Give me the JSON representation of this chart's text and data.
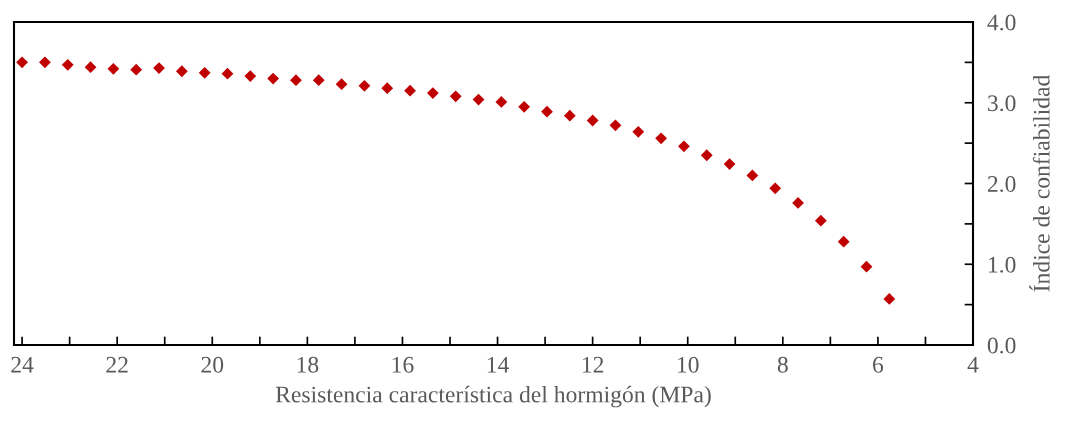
{
  "chart_data": {
    "type": "scatter",
    "xlabel": "Resistencia característica del hormigón (MPa)",
    "ylabel": "Índice de confiabilidad",
    "x": [
      24.0,
      23.52,
      23.04,
      22.56,
      22.08,
      21.6,
      21.12,
      20.64,
      20.16,
      19.68,
      19.2,
      18.72,
      18.24,
      17.76,
      17.28,
      16.8,
      16.32,
      15.84,
      15.36,
      14.88,
      14.4,
      13.92,
      13.44,
      12.96,
      12.48,
      12.0,
      11.52,
      11.04,
      10.56,
      10.08,
      9.6,
      9.12,
      8.64,
      8.16,
      7.68,
      7.2,
      6.72,
      6.24,
      5.76
    ],
    "series": [
      {
        "color": "#c00000",
        "values": [
          3.5,
          3.5,
          3.47,
          3.44,
          3.42,
          3.41,
          3.43,
          3.39,
          3.37,
          3.36,
          3.33,
          3.3,
          3.28,
          3.28,
          3.23,
          3.21,
          3.18,
          3.15,
          3.12,
          3.08,
          3.04,
          3.01,
          2.95,
          2.89,
          2.84,
          2.78,
          2.72,
          2.64,
          2.56,
          2.46,
          2.35,
          2.24,
          2.1,
          1.94,
          1.76,
          1.54,
          1.28,
          0.97,
          0.57
        ]
      }
    ],
    "marker": "diamond",
    "xlim": [
      24.17,
      4
    ],
    "xticks": [
      24,
      {
        "value": 23,
        "label": null
      },
      22,
      {
        "value": 21,
        "label": null
      },
      20,
      {
        "value": 19,
        "label": null
      },
      18,
      {
        "value": 17,
        "label": null
      },
      16,
      {
        "value": 15,
        "label": null
      },
      14,
      {
        "value": 13,
        "label": null
      },
      12,
      {
        "value": 11,
        "label": null
      },
      10,
      {
        "value": 9,
        "label": null
      },
      8,
      {
        "value": 7,
        "label": null
      },
      6,
      {
        "value": 5,
        "label": null
      },
      4
    ],
    "ylim": [
      0,
      4
    ],
    "yticks": [
      {
        "value": 0,
        "label": "0.0"
      },
      {
        "value": 0.5,
        "label": null
      },
      {
        "value": 1,
        "label": "1.0"
      },
      {
        "value": 1.5,
        "label": null
      },
      {
        "value": 2,
        "label": "2.0"
      },
      {
        "value": 2.5,
        "label": null
      },
      {
        "value": 3,
        "label": "3.0"
      },
      {
        "value": 3.5,
        "label": null
      },
      {
        "value": 4,
        "label": "4.0"
      }
    ],
    "grid": false,
    "legend": false
  }
}
